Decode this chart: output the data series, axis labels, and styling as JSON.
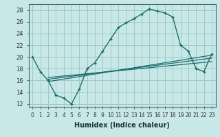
{
  "xlabel": "Humidex (Indice chaleur)",
  "background_color": "#c8e8e8",
  "grid_color": "#a0c8c8",
  "line_color": "#1a6b6b",
  "xlim": [
    -0.5,
    23.5
  ],
  "ylim": [
    11.5,
    29.0
  ],
  "xticks": [
    0,
    1,
    2,
    3,
    4,
    5,
    6,
    7,
    8,
    9,
    10,
    11,
    12,
    13,
    14,
    15,
    16,
    17,
    18,
    19,
    20,
    21,
    22,
    23
  ],
  "yticks": [
    12,
    14,
    16,
    18,
    20,
    22,
    24,
    26,
    28
  ],
  "main_line": {
    "x": [
      0,
      1,
      2,
      3,
      4,
      5,
      6,
      7,
      8,
      9,
      10,
      11,
      12,
      13,
      14,
      15,
      16,
      17,
      18,
      19,
      20,
      21,
      22,
      23
    ],
    "y": [
      20,
      17.5,
      16,
      13.5,
      13.0,
      12.0,
      14.5,
      18.0,
      19.0,
      21.0,
      23.0,
      25.0,
      25.8,
      26.5,
      27.3,
      28.2,
      27.8,
      27.5,
      26.8,
      22.0,
      21.0,
      18.0,
      17.5,
      20.5
    ]
  },
  "trend_lines": [
    {
      "x": [
        2,
        23
      ],
      "y": [
        15.8,
        20.3
      ]
    },
    {
      "x": [
        2,
        23
      ],
      "y": [
        16.2,
        19.8
      ]
    },
    {
      "x": [
        2,
        23
      ],
      "y": [
        16.5,
        19.2
      ]
    }
  ],
  "xtick_fontsize": 5.5,
  "ytick_fontsize": 6.0,
  "xlabel_fontsize": 7.0
}
